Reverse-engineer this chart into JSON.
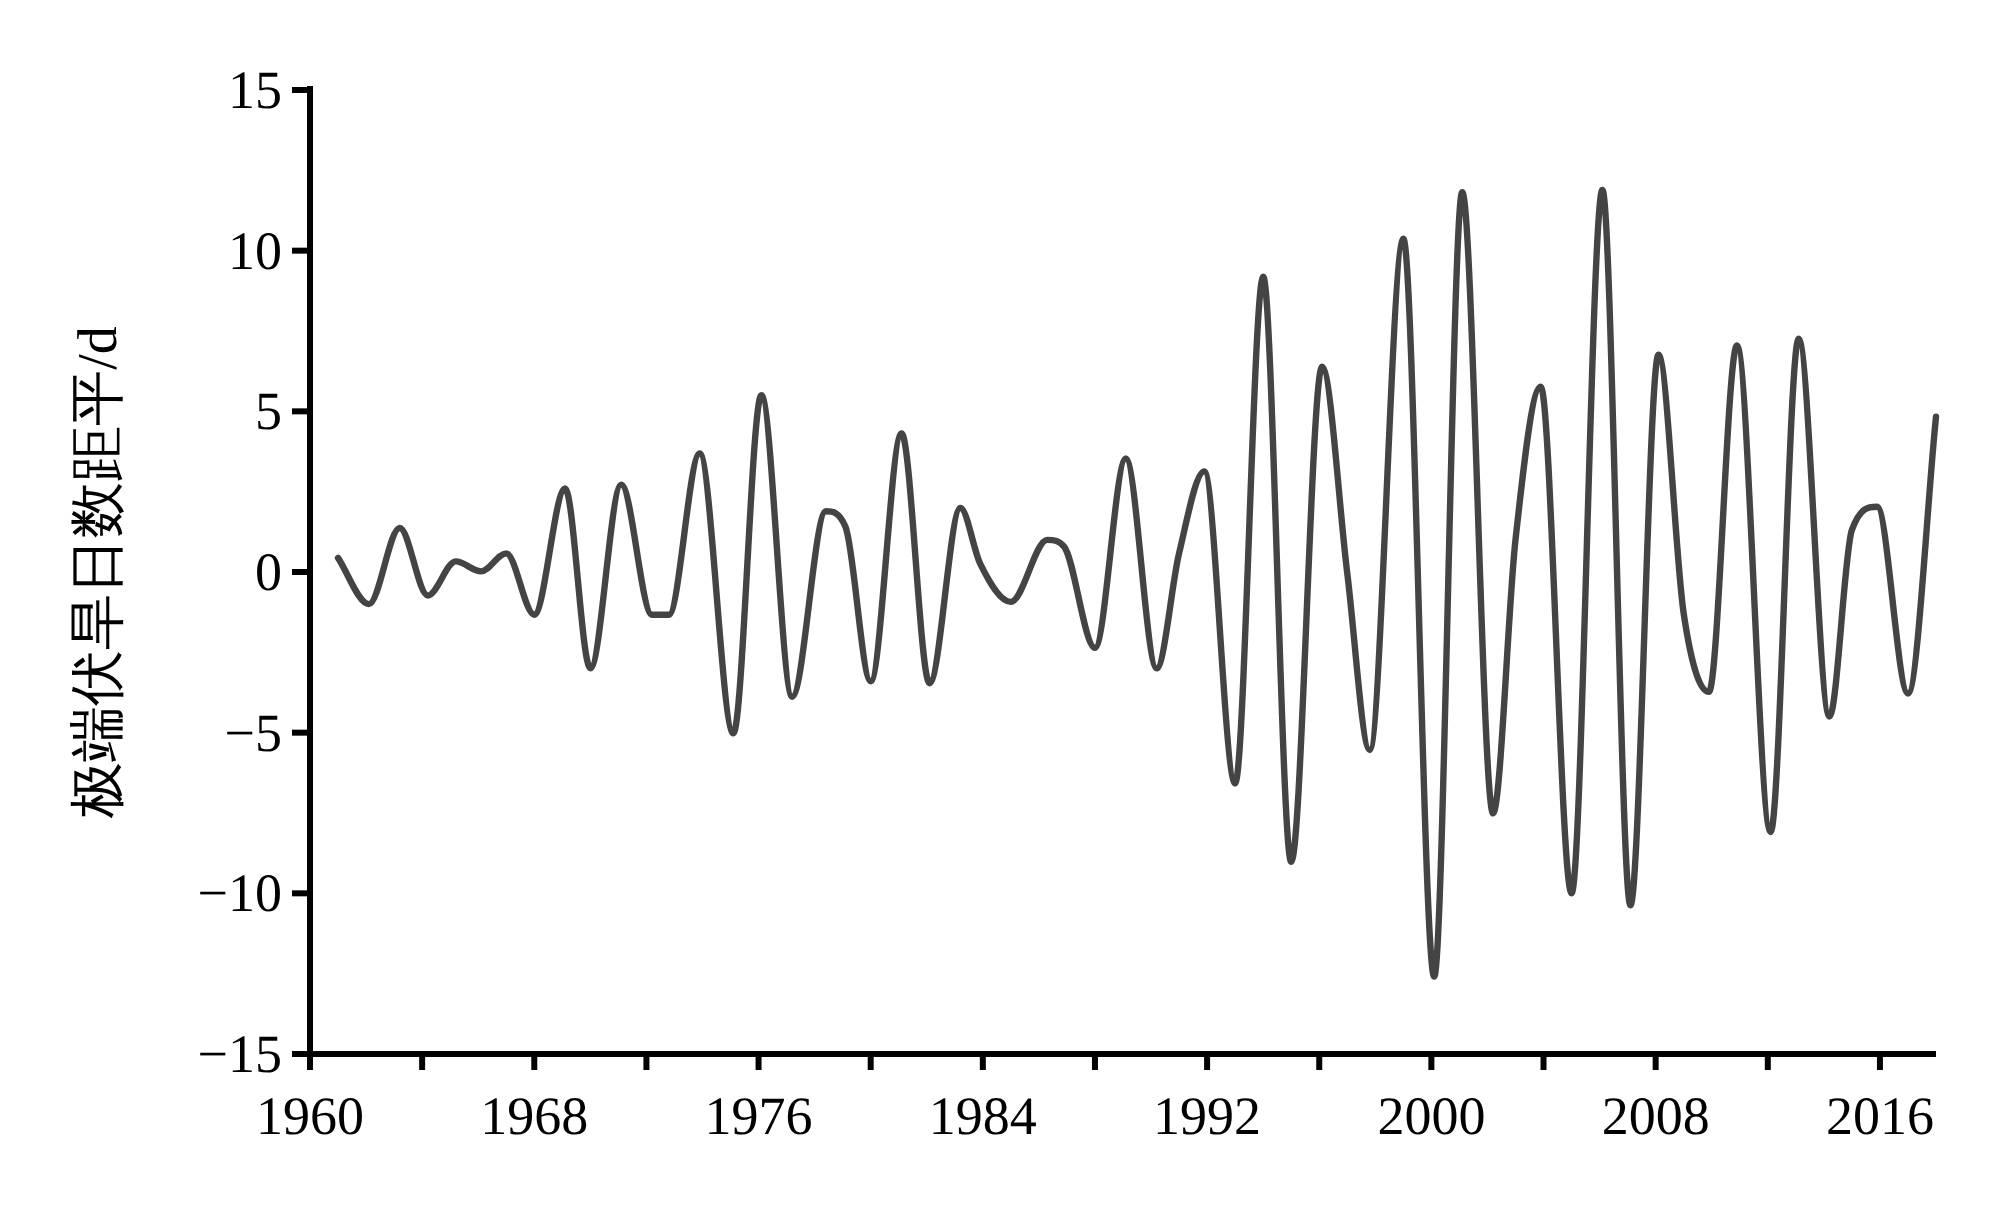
{
  "chart_data": {
    "type": "line",
    "ylabel": "极端伏旱日数距平/d",
    "x": [
      1961.0,
      1962.1,
      1963.2,
      1964.2,
      1965.2,
      1966.1,
      1967.0,
      1968.0,
      1969.1,
      1970.0,
      1971.1,
      1972.2,
      1972.8,
      1973.9,
      1975.1,
      1976.1,
      1977.2,
      1978.4,
      1979.1,
      1980.0,
      1981.1,
      1982.1,
      1983.2,
      1983.9,
      1985.0,
      1986.3,
      1986.9,
      1988.0,
      1989.1,
      1990.2,
      1991.0,
      1991.9,
      1993.0,
      1994.0,
      1995.0,
      1996.1,
      1997.0,
      1997.8,
      1999.0,
      2000.1,
      2001.1,
      2002.2,
      2003.0,
      2003.9,
      2005.0,
      2006.1,
      2007.1,
      2008.1,
      2009.0,
      2009.9,
      2010.9,
      2012.1,
      2013.1,
      2014.2,
      2015.0,
      2015.9,
      2017.0,
      2018.0
    ],
    "series": [
      {
        "color": "#444444",
        "values": [
          0.44,
          -1.0,
          1.37,
          -0.73,
          0.33,
          0.02,
          0.58,
          -1.33,
          2.6,
          -3.0,
          2.72,
          -1.33,
          -1.33,
          3.69,
          -5.02,
          5.5,
          -3.88,
          1.89,
          1.41,
          -3.4,
          4.31,
          -3.46,
          1.99,
          0.27,
          -0.93,
          1.0,
          0.79,
          -2.36,
          3.53,
          -3.0,
          0.58,
          3.13,
          -6.58,
          9.19,
          -9.02,
          6.39,
          -0.04,
          -5.54,
          10.37,
          -12.59,
          11.82,
          -7.51,
          1.0,
          5.77,
          -10.0,
          11.89,
          -10.37,
          6.76,
          -1.29,
          -3.73,
          7.05,
          -8.09,
          7.26,
          -4.5,
          1.31,
          2.03,
          -3.78,
          4.83
        ]
      }
    ],
    "xlim": [
      1960,
      2018
    ],
    "xticks": [
      1960,
      {
        "value": 1964,
        "label": null
      },
      1968,
      {
        "value": 1972,
        "label": null
      },
      1976,
      {
        "value": 1980,
        "label": null
      },
      1984,
      {
        "value": 1988,
        "label": null
      },
      1992,
      {
        "value": 1996,
        "label": null
      },
      2000,
      {
        "value": 2004,
        "label": null
      },
      2008,
      {
        "value": 2012,
        "label": null
      },
      2016
    ],
    "ylim": [
      -15,
      15
    ],
    "yticks": [
      {
        "value": -15,
        "label": "−15"
      },
      {
        "value": -10,
        "label": "−10"
      },
      {
        "value": -5,
        "label": "−5"
      },
      0,
      5,
      10,
      15
    ],
    "grid": false,
    "marker": "none",
    "line_style": "solid"
  }
}
